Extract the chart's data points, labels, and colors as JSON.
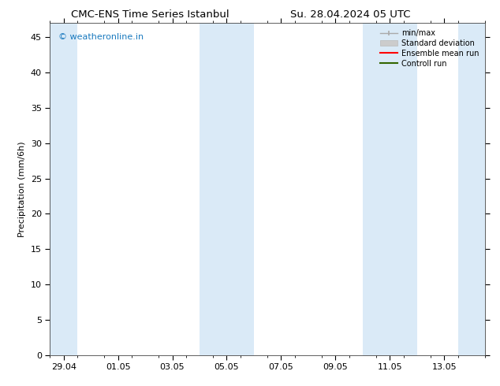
{
  "title_left": "CMC-ENS Time Series Istanbul",
  "title_right": "Su. 28.04.2024 05 UTC",
  "ylabel": "Precipitation (mm/6h)",
  "watermark": "© weatheronline.in",
  "watermark_color": "#1a7abf",
  "xlim_start": -0.5,
  "xlim_end": 15.5,
  "ylim": [
    0,
    47
  ],
  "yticks": [
    0,
    5,
    10,
    15,
    20,
    25,
    30,
    35,
    40,
    45
  ],
  "xtick_labels": [
    "29.04",
    "01.05",
    "03.05",
    "05.05",
    "07.05",
    "09.05",
    "11.05",
    "13.05"
  ],
  "xtick_positions": [
    0,
    2,
    4,
    6,
    8,
    10,
    12,
    14
  ],
  "shade_bands": [
    [
      -0.5,
      0.5
    ],
    [
      5.0,
      7.0
    ],
    [
      11.0,
      13.0
    ],
    [
      14.5,
      15.5
    ]
  ],
  "shade_color": "#daeaf7",
  "bg_color": "#ffffff",
  "legend_labels": [
    "min/max",
    "Standard deviation",
    "Ensemble mean run",
    "Controll run"
  ],
  "legend_colors": [
    "#aaaaaa",
    "#cccccc",
    "#ff0000",
    "#336600"
  ],
  "font_size": 8,
  "title_font_size": 9.5
}
